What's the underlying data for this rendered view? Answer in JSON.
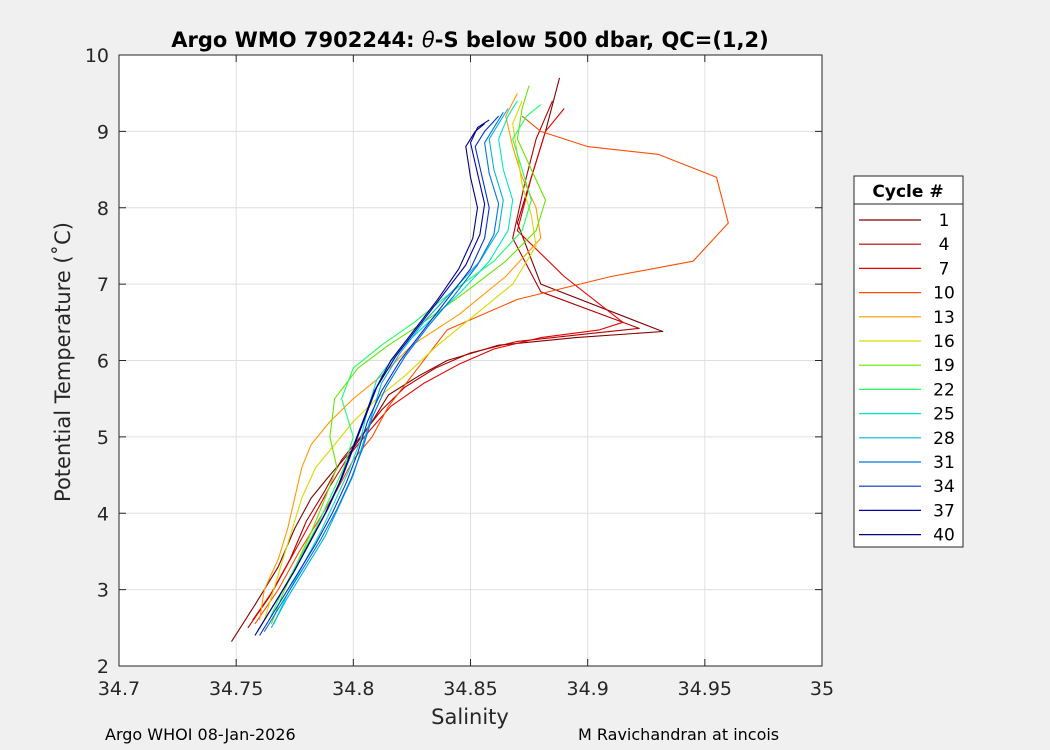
{
  "chart_data": {
    "type": "line",
    "title_prefix": "Argo WMO 7902244: ",
    "title_symbol": "θ",
    "title_suffix": "-S below 500 dbar,  QC=(1,2)",
    "xlabel": "Salinity",
    "ylabel": "Potential Temperature (˚C)",
    "xlim": [
      34.7,
      35.0
    ],
    "ylim": [
      2,
      10
    ],
    "xticks": [
      "34.7",
      "34.75",
      "34.8",
      "34.85",
      "34.9",
      "34.95",
      "35"
    ],
    "yticks": [
      "2",
      "3",
      "4",
      "5",
      "6",
      "7",
      "8",
      "9",
      "10"
    ],
    "grid": true,
    "legend": {
      "title": "Cycle #",
      "placement": "right",
      "entries": [
        "1",
        "4",
        "7",
        "10",
        "13",
        "16",
        "19",
        "22",
        "25",
        "28",
        "31",
        "34",
        "37",
        "40"
      ]
    },
    "series": [
      {
        "name": "1",
        "color": "#800000",
        "salinity": [
          34.748,
          34.758,
          34.768,
          34.775,
          34.782,
          34.79,
          34.8,
          34.808,
          34.815,
          34.828,
          34.84,
          34.862,
          34.895,
          34.932,
          34.88,
          34.87,
          34.876,
          34.882,
          34.888
        ],
        "theta": [
          2.32,
          2.8,
          3.3,
          3.8,
          4.2,
          4.5,
          4.85,
          5.2,
          5.55,
          5.8,
          6.0,
          6.2,
          6.3,
          6.38,
          7.0,
          7.8,
          8.4,
          9.0,
          9.7
        ]
      },
      {
        "name": "4",
        "color": "#b30000",
        "salinity": [
          34.755,
          34.764,
          34.773,
          34.78,
          34.788,
          34.795,
          34.803,
          34.812,
          34.822,
          34.835,
          34.85,
          34.87,
          34.9,
          34.922,
          34.88,
          34.868,
          34.873,
          34.878,
          34.885
        ],
        "theta": [
          2.5,
          2.9,
          3.4,
          3.9,
          4.3,
          4.7,
          5.0,
          5.35,
          5.65,
          5.9,
          6.1,
          6.25,
          6.35,
          6.42,
          6.9,
          7.6,
          8.3,
          8.9,
          9.4
        ]
      },
      {
        "name": "7",
        "color": "#e60000",
        "salinity": [
          34.757,
          34.766,
          34.775,
          34.783,
          34.79,
          34.798,
          34.806,
          34.816,
          34.83,
          34.845,
          34.86,
          34.88,
          34.905,
          34.915,
          34.89,
          34.87,
          34.876,
          34.882,
          34.89
        ],
        "theta": [
          2.6,
          3.0,
          3.5,
          3.95,
          4.35,
          4.75,
          5.05,
          5.4,
          5.7,
          5.95,
          6.15,
          6.3,
          6.4,
          6.5,
          7.1,
          7.7,
          8.4,
          9.0,
          9.3
        ]
      },
      {
        "name": "10",
        "color": "#ff4d00",
        "salinity": [
          34.758,
          34.768,
          34.777,
          34.785,
          34.793,
          34.8,
          34.808,
          34.815,
          34.825,
          34.84,
          34.87,
          34.91,
          34.945,
          34.96,
          34.955,
          34.93,
          34.9,
          34.88,
          34.872
        ],
        "theta": [
          2.55,
          3.0,
          3.5,
          3.9,
          4.3,
          4.7,
          5.0,
          5.4,
          5.8,
          6.4,
          6.8,
          7.1,
          7.3,
          7.8,
          8.4,
          8.7,
          8.8,
          9.0,
          9.2
        ]
      },
      {
        "name": "13",
        "color": "#ff9900",
        "salinity": [
          34.76,
          34.762,
          34.768,
          34.772,
          34.775,
          34.778,
          34.782,
          34.79,
          34.8,
          34.812,
          34.825,
          34.845,
          34.865,
          34.88,
          34.878,
          34.872,
          34.868,
          34.865,
          34.87
        ],
        "theta": [
          2.6,
          3.0,
          3.4,
          3.8,
          4.2,
          4.6,
          4.9,
          5.2,
          5.5,
          5.8,
          6.2,
          6.6,
          7.1,
          7.6,
          8.0,
          8.4,
          8.8,
          9.2,
          9.5
        ]
      },
      {
        "name": "16",
        "color": "#d9d900",
        "salinity": [
          34.762,
          34.766,
          34.77,
          34.774,
          34.778,
          34.784,
          34.792,
          34.8,
          34.81,
          34.822,
          34.836,
          34.852,
          34.868,
          34.878,
          34.876,
          34.872,
          34.87,
          34.868,
          34.872
        ],
        "theta": [
          2.6,
          3.0,
          3.4,
          3.8,
          4.2,
          4.6,
          4.9,
          5.2,
          5.5,
          5.8,
          6.2,
          6.6,
          7.0,
          7.5,
          7.9,
          8.3,
          8.7,
          9.1,
          9.4
        ]
      },
      {
        "name": "19",
        "color": "#66e600",
        "salinity": [
          34.765,
          34.77,
          34.776,
          34.782,
          34.788,
          34.793,
          34.79,
          34.792,
          34.802,
          34.815,
          34.83,
          34.848,
          34.865,
          34.878,
          34.882,
          34.876,
          34.87,
          34.872,
          34.875
        ],
        "theta": [
          2.55,
          2.95,
          3.35,
          3.75,
          4.2,
          4.6,
          5.0,
          5.5,
          5.9,
          6.2,
          6.5,
          6.9,
          7.3,
          7.7,
          8.1,
          8.5,
          8.9,
          9.3,
          9.6
        ]
      },
      {
        "name": "22",
        "color": "#1aff66",
        "salinity": [
          34.764,
          34.77,
          34.777,
          34.784,
          34.79,
          34.796,
          34.8,
          34.795,
          34.8,
          34.812,
          34.826,
          34.842,
          34.86,
          34.872,
          34.876,
          34.872,
          34.868,
          34.874,
          34.88
        ],
        "theta": [
          2.6,
          3.0,
          3.4,
          3.8,
          4.2,
          4.6,
          5.0,
          5.5,
          5.9,
          6.2,
          6.5,
          6.9,
          7.3,
          7.7,
          8.1,
          8.5,
          8.9,
          9.2,
          9.35
        ]
      },
      {
        "name": "25",
        "color": "#00e6c7",
        "salinity": [
          34.766,
          34.772,
          34.779,
          34.786,
          34.792,
          34.798,
          34.803,
          34.806,
          34.81,
          34.82,
          34.832,
          34.846,
          34.858,
          34.866,
          34.868,
          34.864,
          34.862,
          34.866,
          34.87
        ],
        "theta": [
          2.55,
          2.95,
          3.35,
          3.75,
          4.15,
          4.55,
          4.95,
          5.35,
          5.75,
          6.15,
          6.5,
          6.9,
          7.3,
          7.7,
          8.1,
          8.5,
          8.9,
          9.2,
          9.4
        ]
      },
      {
        "name": "28",
        "color": "#00b3e6",
        "salinity": [
          34.765,
          34.772,
          34.78,
          34.788,
          34.794,
          34.8,
          34.804,
          34.808,
          34.812,
          34.82,
          34.83,
          34.842,
          34.854,
          34.862,
          34.864,
          34.86,
          34.858,
          34.862,
          34.866
        ],
        "theta": [
          2.5,
          2.9,
          3.3,
          3.7,
          4.1,
          4.5,
          4.9,
          5.3,
          5.7,
          6.1,
          6.5,
          6.9,
          7.3,
          7.7,
          8.1,
          8.5,
          8.9,
          9.1,
          9.3
        ]
      },
      {
        "name": "31",
        "color": "#0073e6",
        "salinity": [
          34.762,
          34.77,
          34.778,
          34.786,
          34.793,
          34.799,
          34.804,
          34.808,
          34.814,
          34.822,
          34.832,
          34.843,
          34.853,
          34.86,
          34.862,
          34.858,
          34.856,
          34.86,
          34.864
        ],
        "theta": [
          2.45,
          2.85,
          3.25,
          3.65,
          4.05,
          4.45,
          4.85,
          5.25,
          5.65,
          6.05,
          6.45,
          6.85,
          7.25,
          7.65,
          8.05,
          8.45,
          8.85,
          9.05,
          9.25
        ]
      },
      {
        "name": "34",
        "color": "#0033cc",
        "salinity": [
          34.76,
          34.768,
          34.776,
          34.784,
          34.791,
          34.797,
          34.802,
          34.806,
          34.812,
          34.82,
          34.83,
          34.84,
          34.85,
          34.856,
          34.858,
          34.855,
          34.852,
          34.856,
          34.862
        ],
        "theta": [
          2.4,
          2.8,
          3.2,
          3.6,
          4.0,
          4.4,
          4.8,
          5.2,
          5.6,
          6.0,
          6.4,
          6.8,
          7.2,
          7.6,
          8.0,
          8.4,
          8.8,
          9.0,
          9.2
        ]
      },
      {
        "name": "37",
        "color": "#0000a6",
        "salinity": [
          34.759,
          34.767,
          34.775,
          34.782,
          34.789,
          34.795,
          34.8,
          34.805,
          34.81,
          34.818,
          34.828,
          34.838,
          34.848,
          34.854,
          34.856,
          34.853,
          34.85,
          34.853,
          34.858
        ],
        "theta": [
          2.45,
          2.85,
          3.25,
          3.65,
          4.05,
          4.45,
          4.85,
          5.25,
          5.65,
          6.05,
          6.45,
          6.85,
          7.25,
          7.65,
          8.05,
          8.45,
          8.85,
          9.05,
          9.15
        ]
      },
      {
        "name": "40",
        "color": "#000080",
        "salinity": [
          34.758,
          34.766,
          34.774,
          34.781,
          34.788,
          34.794,
          34.799,
          34.804,
          34.809,
          34.816,
          34.826,
          34.836,
          34.845,
          34.851,
          34.853,
          34.85,
          34.848,
          34.852,
          34.856
        ],
        "theta": [
          2.4,
          2.8,
          3.2,
          3.6,
          4.0,
          4.4,
          4.8,
          5.2,
          5.6,
          6.0,
          6.4,
          6.8,
          7.2,
          7.6,
          8.0,
          8.4,
          8.8,
          9.0,
          9.1
        ]
      }
    ]
  },
  "footer": {
    "left": "Argo WHOI 08-Jan-2026",
    "right": "M Ravichandran at incois"
  }
}
